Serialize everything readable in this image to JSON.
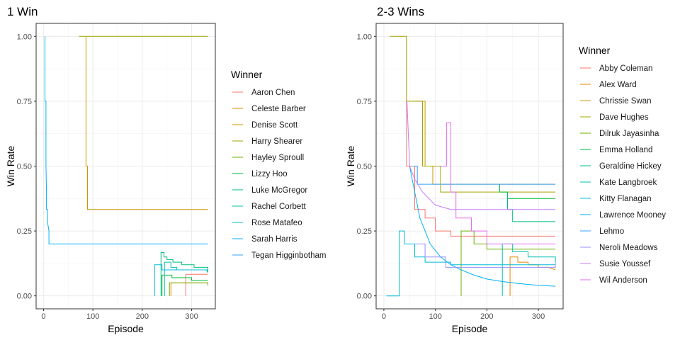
{
  "chart_data": [
    {
      "type": "line",
      "title": "1 Win",
      "xlabel": "Episode",
      "ylabel": "Win Rate",
      "xlim": [
        -15,
        348
      ],
      "ylim": [
        -0.05,
        1.05
      ],
      "x_ticks": [
        "0",
        "100",
        "200",
        "300"
      ],
      "y_ticks": [
        "0.00",
        "0.25",
        "0.50",
        "0.75",
        "1.00"
      ],
      "grid": true,
      "legend_title": "Winner",
      "legend_position": "right",
      "series": [
        {
          "name": "Aaron Chen",
          "color": "#F8766D",
          "points": [
            [
              288,
              0
            ],
            [
              288,
              0.083
            ],
            [
              333,
              0.083
            ]
          ]
        },
        {
          "name": "Celeste Barber",
          "color": "#E58700",
          "points": [
            [
              258,
              0
            ],
            [
              258,
              0.05
            ],
            [
              333,
              0.05
            ]
          ]
        },
        {
          "name": "Denise Scott",
          "color": "#C99800",
          "points": [
            [
              86,
              1
            ],
            [
              86,
              0.5
            ],
            [
              89,
              0.5
            ],
            [
              89,
              0.333
            ],
            [
              333,
              0.333
            ]
          ]
        },
        {
          "name": "Harry Shearer",
          "color": "#A3A500",
          "points": [
            [
              72,
              1
            ],
            [
              333,
              1
            ]
          ]
        },
        {
          "name": "Hayley Sproull",
          "color": "#6BB100",
          "points": [
            [
              255,
              0
            ],
            [
              255,
              0.05
            ],
            [
              333,
              0.05
            ],
            [
              333,
              0.04
            ]
          ]
        },
        {
          "name": "Lizzy Hoo",
          "color": "#00BA38",
          "points": [
            [
              240,
              0
            ],
            [
              240,
              0.08
            ],
            [
              260,
              0.08
            ],
            [
              260,
              0.07
            ],
            [
              300,
              0.07
            ],
            [
              300,
              0.06
            ],
            [
              333,
              0.06
            ]
          ]
        },
        {
          "name": "Luke McGregor",
          "color": "#00BF7D",
          "points": [
            [
              238,
              0
            ],
            [
              238,
              0.167
            ],
            [
              244,
              0.167
            ],
            [
              244,
              0.15
            ],
            [
              250,
              0.15
            ],
            [
              250,
              0.14
            ],
            [
              262,
              0.14
            ],
            [
              262,
              0.13
            ],
            [
              280,
              0.13
            ],
            [
              280,
              0.12
            ],
            [
              305,
              0.12
            ],
            [
              305,
              0.11
            ],
            [
              333,
              0.11
            ],
            [
              333,
              0.09
            ]
          ]
        },
        {
          "name": "Rachel Corbett",
          "color": "#00C0AF",
          "points": [
            [
              245,
              0
            ],
            [
              245,
              0.13
            ],
            [
              258,
              0.13
            ],
            [
              258,
              0.11
            ],
            [
              270,
              0.11
            ],
            [
              270,
              0.1
            ],
            [
              330,
              0.1
            ],
            [
              333,
              0.09
            ]
          ]
        },
        {
          "name": "Rose Matafeo",
          "color": "#00BCD8",
          "points": [
            [
              225,
              0
            ],
            [
              225,
              0.12
            ],
            [
              240,
              0.12
            ],
            [
              240,
              0.1
            ],
            [
              333,
              0.1
            ]
          ]
        },
        {
          "name": "Sarah Harris",
          "color": "#00B0F6",
          "points": [
            [
              3,
              1
            ],
            [
              3,
              0.75
            ],
            [
              5,
              0.75
            ],
            [
              5,
              0.5
            ],
            [
              6,
              0.4
            ],
            [
              6,
              0.333
            ],
            [
              8,
              0.333
            ],
            [
              8,
              0.286
            ],
            [
              11,
              0.25
            ],
            [
              11,
              0.2
            ],
            [
              333,
              0.2
            ]
          ]
        },
        {
          "name": "Tegan Higginbotham",
          "color": "#35A2FF",
          "points": [
            [
              0,
              0
            ],
            [
              0,
              0
            ],
            [
              0,
              0
            ]
          ]
        }
      ]
    },
    {
      "type": "line",
      "title": "2-3 Wins",
      "xlabel": "Episode",
      "ylabel": "Win Rate",
      "xlim": [
        -15,
        348
      ],
      "ylim": [
        -0.05,
        1.05
      ],
      "x_ticks": [
        "0",
        "100",
        "200",
        "300"
      ],
      "y_ticks": [
        "0.00",
        "0.25",
        "0.50",
        "0.75",
        "1.00"
      ],
      "grid": true,
      "legend_title": "Winner",
      "legend_position": "right",
      "series": [
        {
          "name": "Abby Coleman",
          "color": "#F8766D",
          "points": [
            [
              44,
              1
            ],
            [
              44,
              0.5
            ],
            [
              60,
              0.5
            ],
            [
              60,
              0.333
            ],
            [
              80,
              0.333
            ],
            [
              80,
              0.3
            ],
            [
              100,
              0.3
            ],
            [
              100,
              0.25
            ],
            [
              130,
              0.25
            ],
            [
              130,
              0.23
            ],
            [
              333,
              0.23
            ]
          ]
        },
        {
          "name": "Alex Ward",
          "color": "#E58700",
          "points": [
            [
              245,
              0
            ],
            [
              245,
              0.15
            ],
            [
              260,
              0.15
            ],
            [
              260,
              0.13
            ],
            [
              280,
              0.13
            ],
            [
              280,
              0.12
            ],
            [
              300,
              0.12
            ],
            [
              300,
              0.11
            ],
            [
              320,
              0.11
            ],
            [
              333,
              0.1
            ]
          ]
        },
        {
          "name": "Chrissie Swan",
          "color": "#C99800",
          "points": [
            [
              55,
              0.75
            ],
            [
              80,
              0.75
            ],
            [
              80,
              0.5
            ],
            [
              95,
              0.5
            ],
            [
              95,
              0.43
            ],
            [
              333,
              0.43
            ]
          ]
        },
        {
          "name": "Dave Hughes",
          "color": "#A3A500",
          "points": [
            [
              12,
              1
            ],
            [
              44,
              1
            ],
            [
              44,
              0.75
            ],
            [
              75,
              0.75
            ],
            [
              75,
              0.5
            ],
            [
              110,
              0.5
            ],
            [
              110,
              0.4
            ],
            [
              333,
              0.4
            ]
          ]
        },
        {
          "name": "Dilruk Jayasinha",
          "color": "#6BB100",
          "points": [
            [
              150,
              0
            ],
            [
              150,
              0.25
            ],
            [
              175,
              0.25
            ],
            [
              175,
              0.2
            ],
            [
              200,
              0.2
            ],
            [
              200,
              0.18
            ],
            [
              333,
              0.18
            ]
          ]
        },
        {
          "name": "Emma Holland",
          "color": "#00BA38",
          "points": [
            [
              225,
              0.43
            ],
            [
              225,
              0.4
            ],
            [
              240,
              0.4
            ],
            [
              240,
              0.375
            ],
            [
              333,
              0.375
            ]
          ]
        },
        {
          "name": "Geraldine Hickey",
          "color": "#00BF7D",
          "points": [
            [
              240,
              0.4
            ],
            [
              240,
              0.333
            ],
            [
              250,
              0.333
            ],
            [
              250,
              0.286
            ],
            [
              333,
              0.286
            ]
          ]
        },
        {
          "name": "Kate Langbroek",
          "color": "#00C0AF",
          "points": [
            [
              230,
              0
            ],
            [
              230,
              0.2
            ],
            [
              250,
              0.2
            ],
            [
              250,
              0.17
            ],
            [
              280,
              0.17
            ],
            [
              280,
              0.15
            ],
            [
              333,
              0.15
            ],
            [
              333,
              0.13
            ]
          ]
        },
        {
          "name": "Kitty Flanagan",
          "color": "#00BCD8",
          "points": [
            [
              5,
              0
            ],
            [
              30,
              0
            ],
            [
              30,
              0.25
            ],
            [
              40,
              0.25
            ],
            [
              40,
              0.2
            ],
            [
              60,
              0.2
            ],
            [
              60,
              0.15
            ],
            [
              80,
              0.15
            ],
            [
              80,
              0.13
            ],
            [
              130,
              0.13
            ],
            [
              130,
              0.12
            ],
            [
              333,
              0.12
            ]
          ]
        },
        {
          "name": "Lawrence Mooney",
          "color": "#00B0F6",
          "points": [
            [
              50,
              0.5
            ],
            [
              55,
              0.45
            ],
            [
              60,
              0.4
            ],
            [
              70,
              0.3
            ],
            [
              80,
              0.25
            ],
            [
              90,
              0.2
            ],
            [
              110,
              0.15
            ],
            [
              130,
              0.12
            ],
            [
              150,
              0.1
            ],
            [
              175,
              0.08
            ],
            [
              200,
              0.065
            ],
            [
              230,
              0.055
            ],
            [
              260,
              0.048
            ],
            [
              290,
              0.042
            ],
            [
              333,
              0.037
            ]
          ]
        },
        {
          "name": "Lehmo",
          "color": "#35A2FF",
          "points": [
            [
              55,
              0.5
            ],
            [
              65,
              0.5
            ],
            [
              65,
              0.43
            ],
            [
              333,
              0.43
            ]
          ]
        },
        {
          "name": "Neroli Meadows",
          "color": "#9590FF",
          "points": [
            [
              60,
              0.2
            ],
            [
              80,
              0.2
            ],
            [
              80,
              0.15
            ],
            [
              120,
              0.15
            ],
            [
              120,
              0.11
            ],
            [
              333,
              0.11
            ],
            [
              333,
              0.13
            ]
          ]
        },
        {
          "name": "Susie Youssef",
          "color": "#C77CFF",
          "points": [
            [
              45,
              0.75
            ],
            [
              50,
              0.5
            ],
            [
              60,
              0.45
            ],
            [
              75,
              0.4
            ],
            [
              100,
              0.35
            ],
            [
              130,
              0.333
            ],
            [
              333,
              0.333
            ]
          ]
        },
        {
          "name": "Wil Anderson",
          "color": "#E76BF3",
          "points": [
            [
              110,
              0.5
            ],
            [
              122,
              0.5
            ],
            [
              122,
              0.667
            ],
            [
              130,
              0.667
            ],
            [
              130,
              0.4
            ],
            [
              140,
              0.4
            ],
            [
              140,
              0.3
            ],
            [
              170,
              0.3
            ],
            [
              170,
              0.25
            ],
            [
              200,
              0.25
            ],
            [
              200,
              0.2
            ],
            [
              333,
              0.2
            ]
          ]
        }
      ]
    }
  ]
}
